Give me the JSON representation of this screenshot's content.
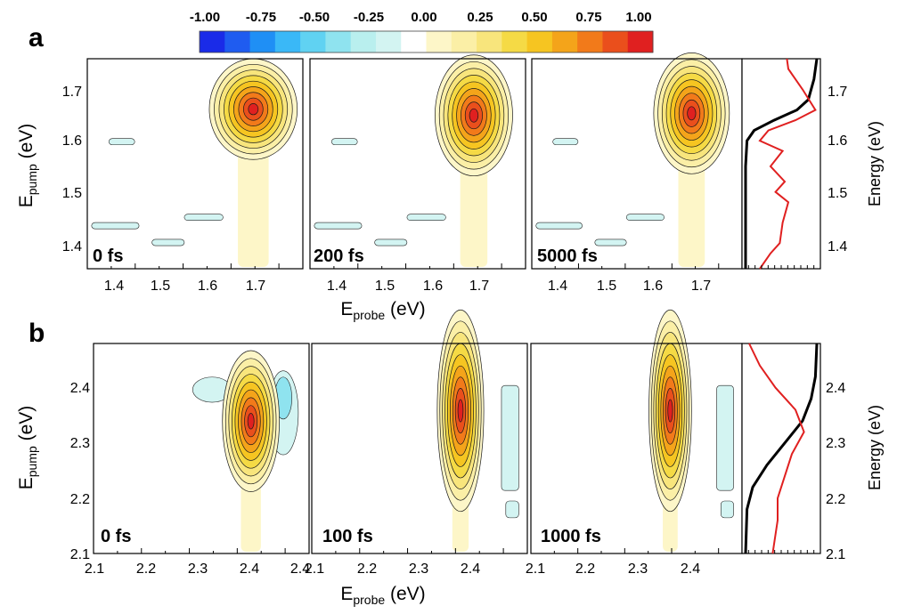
{
  "colorbar": {
    "ticks": [
      "-1.00",
      "-0.75",
      "-0.50",
      "-0.25",
      "0.00",
      "0.25",
      "0.50",
      "0.75",
      "1.00"
    ],
    "colors": [
      "#1a2be8",
      "#1f5cf0",
      "#1f8ff5",
      "#3ab8f7",
      "#60d2f2",
      "#8fe3ef",
      "#b9efee",
      "#d3f4f2",
      "#ffffff",
      "#fdf6c8",
      "#fbefa6",
      "#f8e57c",
      "#f5da45",
      "#f6c521",
      "#f4a41a",
      "#f27a1a",
      "#ea4f1c",
      "#e02020"
    ]
  },
  "panel_labels": [
    "a",
    "b"
  ],
  "axis_text": {
    "ylabel_main": "E",
    "ylabel_sub": "pump",
    "ylabel_unit": " (eV)",
    "xlabel_main": "E",
    "xlabel_sub": "probe",
    "xlabel_unit": " (eV)",
    "right_ylabel": "Energy (eV)"
  },
  "chart_data": [
    {
      "type": "heatmap",
      "row": "a",
      "x_ticks": [
        "1.4",
        "1.5",
        "1.6",
        "1.7"
      ],
      "y_ticks": [
        "1.4",
        "1.5",
        "1.6",
        "1.7"
      ],
      "right_ticks": [
        "1.4",
        "1.5",
        "1.6",
        "1.7"
      ],
      "xlim": [
        1.35,
        1.775
      ],
      "ylim": [
        1.35,
        1.76
      ],
      "panels": [
        {
          "label": "0 fs",
          "peak": [
            1.69,
            1.665
          ]
        },
        {
          "label": "200 fs",
          "peak": [
            1.675,
            1.655
          ]
        },
        {
          "label": "5000 fs",
          "peak": [
            1.665,
            1.66
          ]
        }
      ],
      "spectra": [
        {
          "color": "#000000",
          "points": [
            [
              1.35,
              0.0
            ],
            [
              1.55,
              0.0
            ],
            [
              1.6,
              0.02
            ],
            [
              1.62,
              0.12
            ],
            [
              1.64,
              0.4
            ],
            [
              1.66,
              0.72
            ],
            [
              1.68,
              0.88
            ],
            [
              1.7,
              0.92
            ],
            [
              1.72,
              0.96
            ],
            [
              1.76,
              1.0
            ]
          ]
        },
        {
          "color": "#e02020",
          "points": [
            [
              1.35,
              0.2
            ],
            [
              1.38,
              0.35
            ],
            [
              1.4,
              0.48
            ],
            [
              1.44,
              0.52
            ],
            [
              1.48,
              0.6
            ],
            [
              1.5,
              0.42
            ],
            [
              1.52,
              0.55
            ],
            [
              1.55,
              0.35
            ],
            [
              1.58,
              0.52
            ],
            [
              1.6,
              0.2
            ],
            [
              1.62,
              0.32
            ],
            [
              1.64,
              0.7
            ],
            [
              1.66,
              0.98
            ],
            [
              1.7,
              0.8
            ],
            [
              1.74,
              0.6
            ],
            [
              1.76,
              0.58
            ]
          ]
        }
      ]
    },
    {
      "type": "heatmap",
      "row": "b",
      "x_ticks": [
        "2.1",
        "2.2",
        "2.3",
        "2.4"
      ],
      "y_ticks": [
        "2.1",
        "2.2",
        "2.3",
        "2.4"
      ],
      "right_ticks": [
        "2.1",
        "2.2",
        "2.3",
        "2.4"
      ],
      "xlim": [
        2.1,
        2.47
      ],
      "ylim": [
        2.1,
        2.48
      ],
      "panels": [
        {
          "label": "0 fs",
          "peak": [
            2.375,
            2.355
          ]
        },
        {
          "label": "100 fs",
          "peak": [
            2.37,
            2.37
          ]
        },
        {
          "label": "1000 fs",
          "peak": [
            2.36,
            2.37
          ]
        }
      ],
      "spectra": [
        {
          "color": "#000000",
          "points": [
            [
              2.1,
              0.0
            ],
            [
              2.18,
              0.02
            ],
            [
              2.22,
              0.1
            ],
            [
              2.26,
              0.3
            ],
            [
              2.3,
              0.55
            ],
            [
              2.34,
              0.8
            ],
            [
              2.38,
              0.92
            ],
            [
              2.42,
              0.98
            ],
            [
              2.48,
              1.0
            ]
          ]
        },
        {
          "color": "#e02020",
          "points": [
            [
              2.1,
              0.38
            ],
            [
              2.16,
              0.45
            ],
            [
              2.2,
              0.45
            ],
            [
              2.24,
              0.55
            ],
            [
              2.28,
              0.65
            ],
            [
              2.32,
              0.82
            ],
            [
              2.36,
              0.7
            ],
            [
              2.4,
              0.42
            ],
            [
              2.44,
              0.2
            ],
            [
              2.48,
              0.05
            ]
          ]
        }
      ]
    }
  ]
}
